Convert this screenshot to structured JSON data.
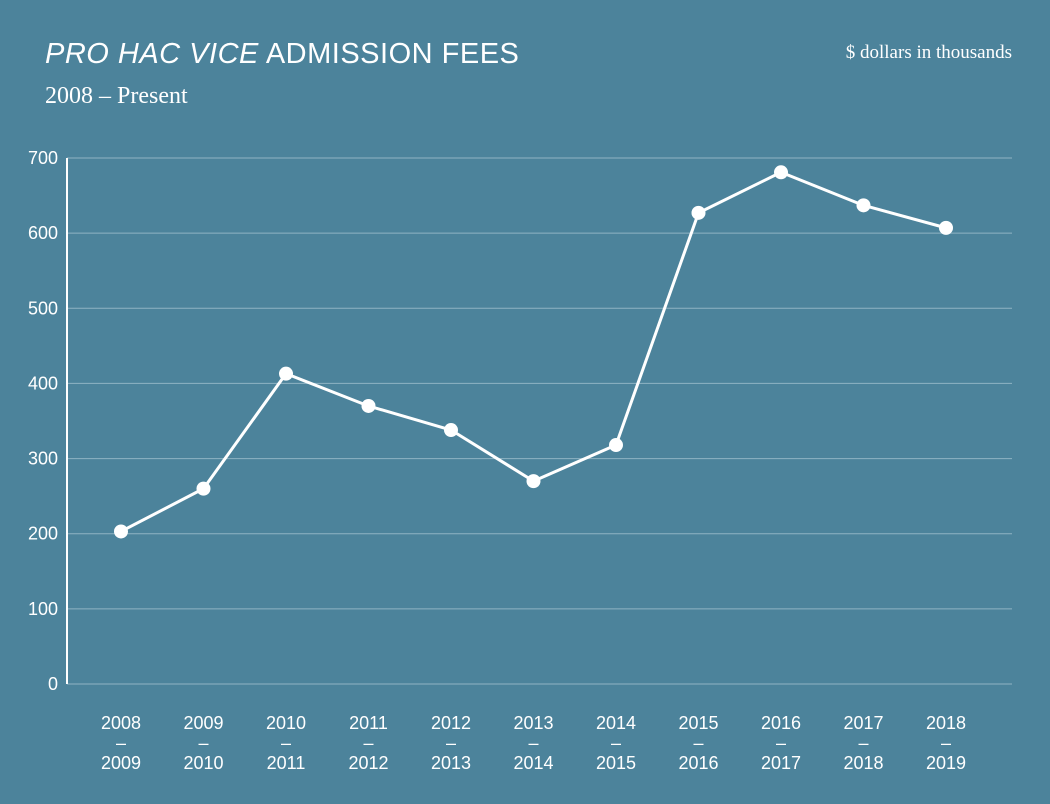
{
  "header": {
    "title_italic": "PRO HAC VICE",
    "title_rest": "ADMISSION FEES",
    "subtitle": "2008 – Present",
    "units": "$ dollars in thousands"
  },
  "chart_data": {
    "type": "line",
    "title": "PRO HAC VICE ADMISSION FEES",
    "subtitle": "2008 – Present",
    "units": "$ dollars in thousands",
    "categories": [
      [
        "2008",
        "–",
        "2009"
      ],
      [
        "2009",
        "–",
        "2010"
      ],
      [
        "2010",
        "–",
        "2011"
      ],
      [
        "2011",
        "–",
        "2012"
      ],
      [
        "2012",
        "–",
        "2013"
      ],
      [
        "2013",
        "–",
        "2014"
      ],
      [
        "2014",
        "–",
        "2015"
      ],
      [
        "2015",
        "–",
        "2016"
      ],
      [
        "2016",
        "–",
        "2017"
      ],
      [
        "2017",
        "–",
        "2018"
      ],
      [
        "2018",
        "–",
        "2019"
      ]
    ],
    "values": [
      203,
      260,
      413,
      370,
      338,
      270,
      318,
      627,
      681,
      637,
      607
    ],
    "ylim": [
      0,
      700
    ],
    "yticks": [
      0,
      100,
      200,
      300,
      400,
      500,
      600,
      700
    ],
    "grid": true,
    "colors": {
      "background": "#4c839b",
      "line": "#ffffff",
      "grid": "#8fb3c3"
    }
  }
}
